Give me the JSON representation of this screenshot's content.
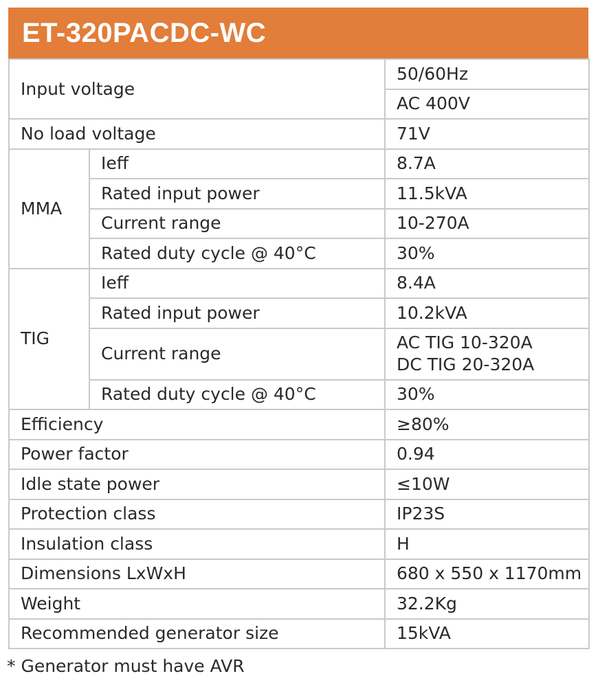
{
  "title": "ET-320PACDC-WC",
  "input_voltage": {
    "label": "Input voltage",
    "values": [
      "50/60Hz",
      "AC 400V"
    ]
  },
  "no_load_voltage": {
    "label": "No load voltage",
    "value": "71V"
  },
  "mma": {
    "label": "MMA",
    "rows": [
      {
        "label": "Ieff",
        "value": "8.7A"
      },
      {
        "label": "Rated input power",
        "value": "11.5kVA"
      },
      {
        "label": "Current range",
        "value": "10-270A"
      },
      {
        "label": "Rated duty cycle @ 40°C",
        "value": "30%"
      }
    ]
  },
  "tig": {
    "label": "TIG",
    "rows": [
      {
        "label": "Ieff",
        "value": "8.4A"
      },
      {
        "label": "Rated input power",
        "value": "10.2kVA"
      },
      {
        "label": "Current range",
        "value": "AC TIG 10-320A",
        "value2": "DC TIG 20-320A"
      },
      {
        "label": "Rated duty cycle @ 40°C",
        "value": "30%"
      }
    ]
  },
  "rows": [
    {
      "label": "Efficiency",
      "value": "≥80%"
    },
    {
      "label": "Power factor",
      "value": "0.94"
    },
    {
      "label": "Idle state power",
      "value": "≤10W"
    },
    {
      "label": "Protection class",
      "value": "IP23S"
    },
    {
      "label": "Insulation class",
      "value": "H"
    },
    {
      "label": "Dimensions LxWxH",
      "value": "680 x 550 x 1170mm"
    },
    {
      "label": "Weight",
      "value": "32.2Kg"
    },
    {
      "label": "Recommended generator size",
      "value": "15kVA"
    }
  ],
  "footnote": "* Generator must have AVR",
  "colors": {
    "header_bg": "#e27d3a",
    "header_text": "#ffffff",
    "border": "#c9c9c9"
  }
}
